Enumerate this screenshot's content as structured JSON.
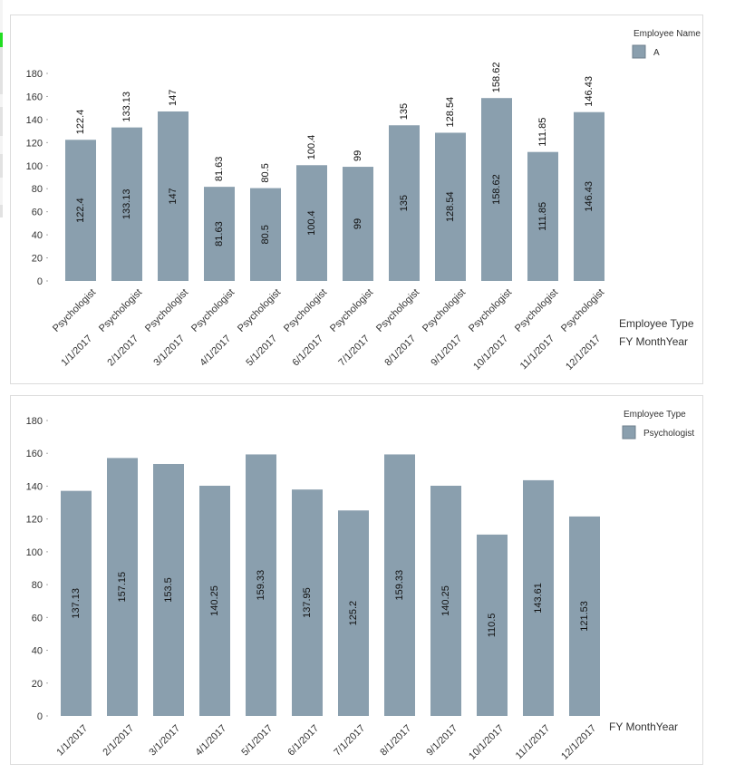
{
  "colors": {
    "bar": "#8a9fae",
    "axis_text": "#333333",
    "tick": "#aaaaaa"
  },
  "chart_data": [
    {
      "type": "bar",
      "categories": [
        "1/1/2017",
        "2/1/2017",
        "3/1/2017",
        "4/1/2017",
        "5/1/2017",
        "6/1/2017",
        "7/1/2017",
        "8/1/2017",
        "9/1/2017",
        "10/1/2017",
        "11/1/2017",
        "12/1/2017"
      ],
      "subcategory": "Psychologist",
      "series": [
        {
          "name": "A",
          "values": [
            122.4,
            133.13,
            147,
            81.63,
            80.5,
            100.4,
            99,
            135,
            128.54,
            158.62,
            111.85,
            146.43
          ]
        }
      ],
      "ylim": [
        0,
        180
      ],
      "yticks": [
        0,
        20,
        40,
        60,
        80,
        100,
        120,
        140,
        160,
        180
      ],
      "x_axis_labels": [
        "Employee Type",
        "FY MonthYear"
      ],
      "legend": {
        "title": "Employee Name",
        "position": "top-right"
      }
    },
    {
      "type": "bar",
      "categories": [
        "1/1/2017",
        "2/1/2017",
        "3/1/2017",
        "4/1/2017",
        "5/1/2017",
        "6/1/2017",
        "7/1/2017",
        "8/1/2017",
        "9/1/2017",
        "10/1/2017",
        "11/1/2017",
        "12/1/2017"
      ],
      "series": [
        {
          "name": "Psychologist",
          "values": [
            137.13,
            157.15,
            153.5,
            140.25,
            159.33,
            137.95,
            125.2,
            159.33,
            140.25,
            110.5,
            143.61,
            121.53
          ]
        }
      ],
      "ylim": [
        0,
        180
      ],
      "yticks": [
        0,
        20,
        40,
        60,
        80,
        100,
        120,
        140,
        160,
        180
      ],
      "x_axis_labels": [
        "FY MonthYear"
      ],
      "legend": {
        "title": "Employee Type",
        "position": "top-right"
      }
    }
  ]
}
